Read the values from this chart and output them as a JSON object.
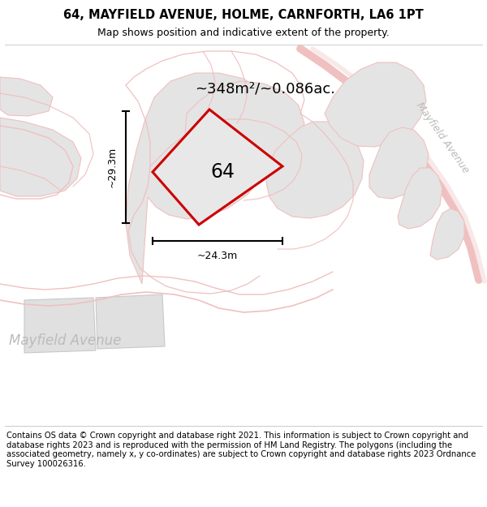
{
  "title_line1": "64, MAYFIELD AVENUE, HOLME, CARNFORTH, LA6 1PT",
  "title_line2": "Map shows position and indicative extent of the property.",
  "area_text": "~348m²/~0.086ac.",
  "label_64": "64",
  "dim_vertical": "~29.3m",
  "dim_horizontal": "~24.3m",
  "street_label_bottom": "Mayfield Avenue",
  "street_label_right": "Mayfield Avenue",
  "footer_text": "Contains OS data © Crown copyright and database right 2021. This information is subject to Crown copyright and database rights 2023 and is reproduced with the permission of HM Land Registry. The polygons (including the associated geometry, namely x, y co-ordinates) are subject to Crown copyright and database rights 2023 Ordnance Survey 100026316.",
  "bg_color": "#ffffff",
  "map_bg": "#ffffff",
  "property_fill": "#e8e8e8",
  "property_stroke": "#cc0000",
  "neighbor_fill": "#e4e4e4",
  "neighbor_stroke": "#f0c0c0",
  "road_color": "#f0c0c0",
  "dim_color": "#000000",
  "text_color": "#000000",
  "gray_text": "#bbbbbb",
  "figsize": [
    6.0,
    6.25
  ],
  "dpi": 100
}
